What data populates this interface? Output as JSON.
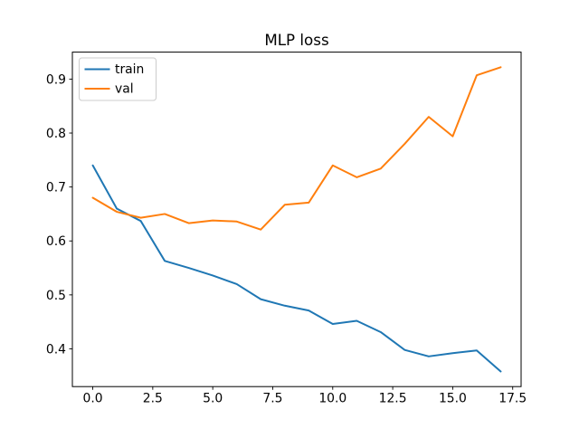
{
  "figure": {
    "title": "MLP loss"
  },
  "chart_data": {
    "type": "line",
    "title": "MLP loss",
    "xlabel": "",
    "ylabel": "",
    "x": [
      0,
      1,
      2,
      3,
      4,
      5,
      6,
      7,
      8,
      9,
      10,
      11,
      12,
      13,
      14,
      15,
      16,
      17
    ],
    "series": [
      {
        "name": "train",
        "color": "#1f77b4",
        "values": [
          0.74,
          0.66,
          0.637,
          0.563,
          0.55,
          0.536,
          0.52,
          0.492,
          0.48,
          0.471,
          0.446,
          0.452,
          0.431,
          0.398,
          0.386,
          0.392,
          0.397,
          0.358
        ]
      },
      {
        "name": "val",
        "color": "#ff7f0e",
        "values": [
          0.68,
          0.654,
          0.643,
          0.65,
          0.633,
          0.638,
          0.636,
          0.621,
          0.667,
          0.671,
          0.74,
          0.718,
          0.734,
          0.78,
          0.83,
          0.794,
          0.907,
          0.922
        ]
      }
    ],
    "xlim": [
      -0.85,
      17.85
    ],
    "ylim": [
      0.33,
      0.95
    ],
    "xticks": [
      0,
      2.5,
      5,
      7.5,
      10,
      12.5,
      15,
      17.5
    ],
    "xtick_labels": [
      "0.0",
      "2.5",
      "5.0",
      "7.5",
      "10.0",
      "12.5",
      "15.0",
      "17.5"
    ],
    "yticks": [
      0.4,
      0.5,
      0.6,
      0.7,
      0.8,
      0.9
    ],
    "ytick_labels": [
      "0.4",
      "0.5",
      "0.6",
      "0.7",
      "0.8",
      "0.9"
    ],
    "grid": false,
    "legend": {
      "position": "upper left",
      "entries": [
        "train",
        "val"
      ]
    },
    "axis_color": "#000000",
    "background": "#ffffff",
    "legend_border_color": "#cccccc"
  }
}
